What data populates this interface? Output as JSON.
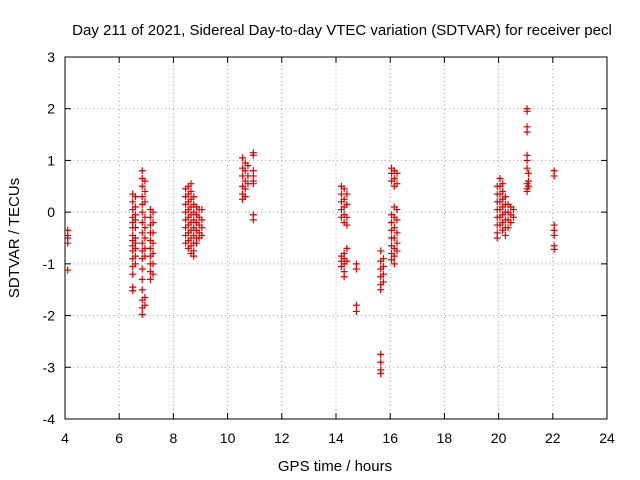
{
  "chart_data": {
    "type": "scatter",
    "title": "Day 211 of 2021, Sidereal Day-to-day VTEC variation (SDTVAR) for receiver pecl",
    "xlabel": "GPS time / hours",
    "ylabel": "SDTVAR / TECUs",
    "xlim": [
      4,
      24
    ],
    "ylim": [
      -4,
      3
    ],
    "xticks": [
      "4",
      "6",
      "8",
      "10",
      "12",
      "14",
      "16",
      "18",
      "20",
      "22",
      "24"
    ],
    "yticks": [
      "-4",
      "-3",
      "-2",
      "-1",
      "0",
      "1",
      "2",
      "3"
    ],
    "grid": true,
    "marker": "plus",
    "marker_color": "#e00000",
    "series": [
      {
        "name": "SDTVAR",
        "points": [
          [
            4.1,
            -0.35
          ],
          [
            4.1,
            -0.45
          ],
          [
            4.1,
            -0.5
          ],
          [
            4.1,
            -0.6
          ],
          [
            4.1,
            -1.12
          ],
          [
            6.5,
            0.35
          ],
          [
            6.5,
            0.2
          ],
          [
            6.5,
            0.05
          ],
          [
            6.5,
            -0.1
          ],
          [
            6.5,
            -0.2
          ],
          [
            6.5,
            -0.3
          ],
          [
            6.5,
            -0.45
          ],
          [
            6.5,
            -0.55
          ],
          [
            6.5,
            -0.65
          ],
          [
            6.5,
            -0.75
          ],
          [
            6.5,
            -0.9
          ],
          [
            6.5,
            -1.05
          ],
          [
            6.5,
            -1.2
          ],
          [
            6.5,
            -1.45
          ],
          [
            6.5,
            -1.52
          ],
          [
            6.6,
            0.3
          ],
          [
            6.6,
            0.1
          ],
          [
            6.6,
            -0.05
          ],
          [
            6.6,
            -0.15
          ],
          [
            6.6,
            -0.3
          ],
          [
            6.6,
            -0.5
          ],
          [
            6.6,
            -0.6
          ],
          [
            6.6,
            -0.7
          ],
          [
            6.6,
            -0.85
          ],
          [
            6.6,
            -1.0
          ],
          [
            6.85,
            0.8
          ],
          [
            6.85,
            0.65
          ],
          [
            6.85,
            0.5
          ],
          [
            6.85,
            0.3
          ],
          [
            6.85,
            0.15
          ],
          [
            6.85,
            0.0
          ],
          [
            6.85,
            -0.2
          ],
          [
            6.85,
            -0.4
          ],
          [
            6.85,
            -0.6
          ],
          [
            6.85,
            -0.75
          ],
          [
            6.85,
            -0.9
          ],
          [
            6.85,
            -1.1
          ],
          [
            6.85,
            -1.3
          ],
          [
            6.85,
            -1.5
          ],
          [
            6.85,
            -1.7
          ],
          [
            6.85,
            -1.85
          ],
          [
            6.85,
            -1.98
          ],
          [
            6.95,
            0.6
          ],
          [
            6.95,
            0.4
          ],
          [
            6.95,
            0.2
          ],
          [
            6.95,
            -0.1
          ],
          [
            6.95,
            -0.3
          ],
          [
            6.95,
            -0.5
          ],
          [
            6.95,
            -0.7
          ],
          [
            6.95,
            -0.85
          ],
          [
            6.95,
            -1.65
          ],
          [
            6.95,
            -1.8
          ],
          [
            7.15,
            0.05
          ],
          [
            7.15,
            -0.1
          ],
          [
            7.15,
            -0.25
          ],
          [
            7.15,
            -0.4
          ],
          [
            7.15,
            -0.55
          ],
          [
            7.15,
            -0.7
          ],
          [
            7.15,
            -0.85
          ],
          [
            7.15,
            -1.0
          ],
          [
            7.15,
            -1.15
          ],
          [
            7.15,
            -1.3
          ],
          [
            7.25,
            0.0
          ],
          [
            7.25,
            -0.2
          ],
          [
            7.25,
            -0.4
          ],
          [
            7.25,
            -0.6
          ],
          [
            7.25,
            -0.8
          ],
          [
            7.25,
            -1.0
          ],
          [
            7.25,
            -1.2
          ],
          [
            8.45,
            0.45
          ],
          [
            8.45,
            0.3
          ],
          [
            8.45,
            0.15
          ],
          [
            8.45,
            0.0
          ],
          [
            8.45,
            -0.15
          ],
          [
            8.45,
            -0.3
          ],
          [
            8.45,
            -0.45
          ],
          [
            8.45,
            -0.6
          ],
          [
            8.55,
            0.5
          ],
          [
            8.55,
            0.35
          ],
          [
            8.55,
            0.2
          ],
          [
            8.55,
            0.05
          ],
          [
            8.55,
            -0.1
          ],
          [
            8.55,
            -0.25
          ],
          [
            8.55,
            -0.4
          ],
          [
            8.55,
            -0.55
          ],
          [
            8.55,
            -0.7
          ],
          [
            8.65,
            0.55
          ],
          [
            8.65,
            0.4
          ],
          [
            8.65,
            0.25
          ],
          [
            8.65,
            0.1
          ],
          [
            8.65,
            -0.05
          ],
          [
            8.65,
            -0.2
          ],
          [
            8.65,
            -0.35
          ],
          [
            8.65,
            -0.5
          ],
          [
            8.65,
            -0.65
          ],
          [
            8.65,
            -0.8
          ],
          [
            8.75,
            0.3
          ],
          [
            8.75,
            0.15
          ],
          [
            8.75,
            0.0
          ],
          [
            8.75,
            -0.15
          ],
          [
            8.75,
            -0.3
          ],
          [
            8.75,
            -0.45
          ],
          [
            8.75,
            -0.6
          ],
          [
            8.75,
            -0.75
          ],
          [
            8.75,
            -0.85
          ],
          [
            8.85,
            0.1
          ],
          [
            8.85,
            -0.05
          ],
          [
            8.85,
            -0.2
          ],
          [
            8.85,
            -0.35
          ],
          [
            8.85,
            -0.5
          ],
          [
            8.85,
            -0.6
          ],
          [
            8.95,
            0.05
          ],
          [
            8.95,
            -0.1
          ],
          [
            8.95,
            -0.25
          ],
          [
            8.95,
            -0.4
          ],
          [
            8.95,
            -0.5
          ],
          [
            9.05,
            0.05
          ],
          [
            9.05,
            -0.15
          ],
          [
            9.05,
            -0.3
          ],
          [
            9.05,
            -0.45
          ],
          [
            10.55,
            1.05
          ],
          [
            10.55,
            0.85
          ],
          [
            10.55,
            0.7
          ],
          [
            10.55,
            0.5
          ],
          [
            10.55,
            0.35
          ],
          [
            10.55,
            0.25
          ],
          [
            10.65,
            0.95
          ],
          [
            10.65,
            0.8
          ],
          [
            10.65,
            0.6
          ],
          [
            10.65,
            0.45
          ],
          [
            10.65,
            0.3
          ],
          [
            10.75,
            0.9
          ],
          [
            10.75,
            0.7
          ],
          [
            10.75,
            0.55
          ],
          [
            10.95,
            1.15
          ],
          [
            10.95,
            1.1
          ],
          [
            10.95,
            0.8
          ],
          [
            10.95,
            0.7
          ],
          [
            10.95,
            0.6
          ],
          [
            10.95,
            0.55
          ],
          [
            10.95,
            -0.05
          ],
          [
            10.95,
            -0.15
          ],
          [
            14.2,
            0.5
          ],
          [
            14.2,
            0.35
          ],
          [
            14.2,
            0.2
          ],
          [
            14.2,
            0.05
          ],
          [
            14.2,
            -0.1
          ],
          [
            14.2,
            -0.85
          ],
          [
            14.2,
            -0.95
          ],
          [
            14.2,
            -1.05
          ],
          [
            14.3,
            0.45
          ],
          [
            14.3,
            0.25
          ],
          [
            14.3,
            0.1
          ],
          [
            14.3,
            -0.05
          ],
          [
            14.3,
            -0.2
          ],
          [
            14.3,
            -0.8
          ],
          [
            14.3,
            -0.9
          ],
          [
            14.3,
            -1.0
          ],
          [
            14.3,
            -1.15
          ],
          [
            14.3,
            -1.25
          ],
          [
            14.4,
            0.35
          ],
          [
            14.4,
            0.15
          ],
          [
            14.4,
            -0.1
          ],
          [
            14.4,
            -0.25
          ],
          [
            14.4,
            -0.7
          ],
          [
            14.4,
            -0.95
          ],
          [
            14.75,
            -1.0
          ],
          [
            14.75,
            -1.1
          ],
          [
            14.75,
            -1.8
          ],
          [
            14.75,
            -1.92
          ],
          [
            15.65,
            -0.75
          ],
          [
            15.65,
            -0.95
          ],
          [
            15.65,
            -1.1
          ],
          [
            15.65,
            -1.25
          ],
          [
            15.65,
            -1.4
          ],
          [
            15.65,
            -1.5
          ],
          [
            15.65,
            -2.75
          ],
          [
            15.65,
            -2.9
          ],
          [
            15.65,
            -3.05
          ],
          [
            15.65,
            -3.12
          ],
          [
            15.75,
            -0.9
          ],
          [
            15.75,
            -1.05
          ],
          [
            15.75,
            -1.2
          ],
          [
            15.75,
            -1.35
          ],
          [
            16.05,
            0.85
          ],
          [
            16.05,
            0.75
          ],
          [
            16.05,
            0.6
          ],
          [
            16.05,
            -0.05
          ],
          [
            16.05,
            -0.2
          ],
          [
            16.05,
            -0.35
          ],
          [
            16.05,
            -0.5
          ],
          [
            16.05,
            -0.65
          ],
          [
            16.05,
            -0.8
          ],
          [
            16.05,
            -0.92
          ],
          [
            16.15,
            0.8
          ],
          [
            16.15,
            0.65
          ],
          [
            16.15,
            0.5
          ],
          [
            16.15,
            0.1
          ],
          [
            16.15,
            -0.1
          ],
          [
            16.15,
            -0.3
          ],
          [
            16.15,
            -0.5
          ],
          [
            16.15,
            -0.7
          ],
          [
            16.15,
            -0.85
          ],
          [
            16.15,
            -1.0
          ],
          [
            16.25,
            0.75
          ],
          [
            16.25,
            0.55
          ],
          [
            16.25,
            0.05
          ],
          [
            16.25,
            -0.15
          ],
          [
            16.25,
            -0.4
          ],
          [
            16.25,
            -0.6
          ],
          [
            16.25,
            -0.75
          ],
          [
            19.95,
            0.5
          ],
          [
            19.95,
            0.35
          ],
          [
            19.95,
            0.2
          ],
          [
            19.95,
            0.05
          ],
          [
            19.95,
            -0.1
          ],
          [
            19.95,
            -0.25
          ],
          [
            19.95,
            -0.4
          ],
          [
            19.95,
            -0.5
          ],
          [
            20.05,
            0.65
          ],
          [
            20.05,
            0.5
          ],
          [
            20.05,
            0.35
          ],
          [
            20.05,
            0.2
          ],
          [
            20.05,
            0.05
          ],
          [
            20.05,
            -0.1
          ],
          [
            20.05,
            -0.25
          ],
          [
            20.15,
            0.55
          ],
          [
            20.15,
            0.4
          ],
          [
            20.15,
            0.25
          ],
          [
            20.15,
            0.1
          ],
          [
            20.15,
            -0.05
          ],
          [
            20.15,
            -0.2
          ],
          [
            20.15,
            -0.35
          ],
          [
            20.25,
            0.3
          ],
          [
            20.25,
            0.15
          ],
          [
            20.25,
            0.0
          ],
          [
            20.25,
            -0.15
          ],
          [
            20.25,
            -0.3
          ],
          [
            20.25,
            -0.45
          ],
          [
            20.35,
            0.15
          ],
          [
            20.35,
            0.0
          ],
          [
            20.35,
            -0.15
          ],
          [
            20.35,
            -0.3
          ],
          [
            20.45,
            0.1
          ],
          [
            20.45,
            -0.05
          ],
          [
            20.45,
            -0.2
          ],
          [
            20.55,
            0.05
          ],
          [
            20.55,
            -0.1
          ],
          [
            21.05,
            2.0
          ],
          [
            21.05,
            1.95
          ],
          [
            21.05,
            1.65
          ],
          [
            21.05,
            1.55
          ],
          [
            21.05,
            1.1
          ],
          [
            21.05,
            1.0
          ],
          [
            21.05,
            0.85
          ],
          [
            21.05,
            0.55
          ],
          [
            21.05,
            0.45
          ],
          [
            21.05,
            0.4
          ],
          [
            21.1,
            0.75
          ],
          [
            21.1,
            0.6
          ],
          [
            21.1,
            0.5
          ],
          [
            22.05,
            0.8
          ],
          [
            22.05,
            0.7
          ],
          [
            22.05,
            -0.25
          ],
          [
            22.05,
            -0.35
          ],
          [
            22.05,
            -0.45
          ],
          [
            22.05,
            -0.65
          ],
          [
            22.05,
            -0.72
          ]
        ]
      }
    ]
  }
}
